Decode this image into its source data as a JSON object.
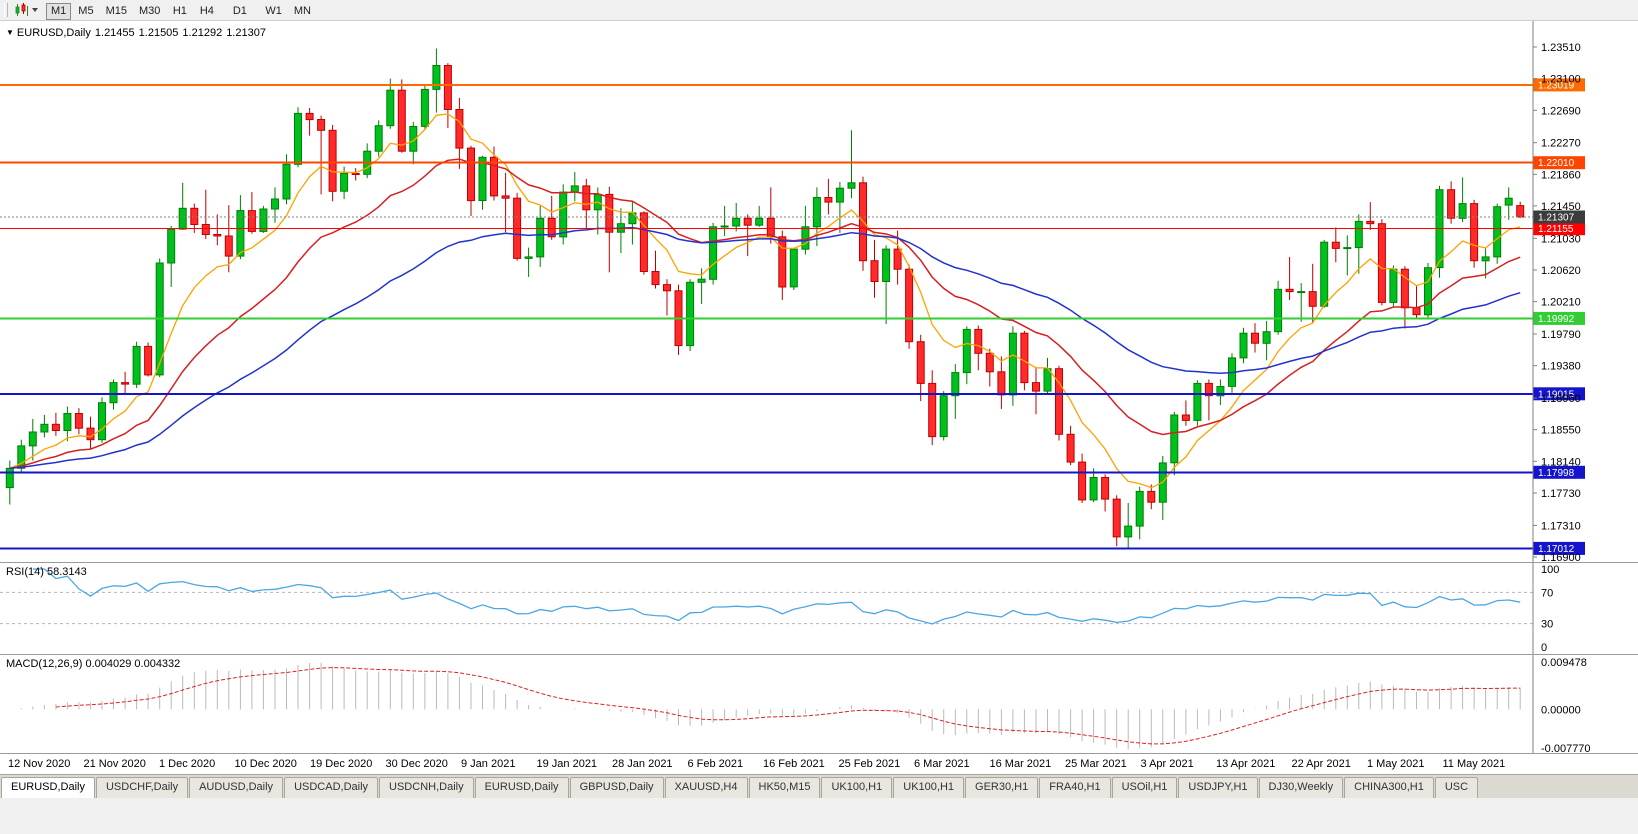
{
  "toolbar": {
    "timeframes": [
      "M1",
      "M5",
      "M15",
      "M30",
      "H1",
      "H4",
      "D1",
      "W1",
      "MN"
    ],
    "active": "M1",
    "group_breaks": [
      "H4",
      "D1"
    ]
  },
  "chart_header": {
    "menu_icon": "▼",
    "symbol": "EURUSD,Daily",
    "open": "1.21455",
    "high": "1.21505",
    "low": "1.21292",
    "close": "1.21307"
  },
  "chart_data": {
    "type": "candlestick",
    "title": "EURUSD,Daily",
    "ylim": [
      1.169,
      1.2351
    ],
    "y_ticks": [
      "1.23510",
      "1.23100",
      "1.22690",
      "1.22270",
      "1.21860",
      "1.21450",
      "1.21030",
      "1.20620",
      "1.20210",
      "1.19790",
      "1.19380",
      "1.18960",
      "1.18550",
      "1.18140",
      "1.17730",
      "1.17310",
      "1.16900"
    ],
    "x_labels": [
      "12 Nov 2020",
      "21 Nov 2020",
      "1 Dec 2020",
      "10 Dec 2020",
      "19 Dec 2020",
      "30 Dec 2020",
      "9 Jan 2021",
      "19 Jan 2021",
      "28 Jan 2021",
      "6 Feb 2021",
      "16 Feb 2021",
      "25 Feb 2021",
      "6 Mar 2021",
      "16 Mar 2021",
      "25 Mar 2021",
      "3 Apr 2021",
      "13 Apr 2021",
      "22 Apr 2021",
      "1 May 2021",
      "11 May 2021"
    ],
    "colors": {
      "up": "#00c020",
      "up_border": "#008000",
      "down": "#ff2a2a",
      "down_border": "#c00000"
    },
    "moving_averages": [
      {
        "name": "ma-fast",
        "method": "ema",
        "period": 8,
        "color": "#ffa200",
        "width": 1.3
      },
      {
        "name": "ma-mid",
        "method": "ema",
        "period": 20,
        "color": "#d62020",
        "width": 1.5
      },
      {
        "name": "ma-slow",
        "method": "ema",
        "period": 45,
        "color": "#2233cc",
        "width": 1.5
      }
    ],
    "hlines": [
      {
        "price": 1.23019,
        "label": "1.23019",
        "color": "#ff6a00",
        "width": 2
      },
      {
        "price": 1.2201,
        "label": "1.22010",
        "color": "#ff4400",
        "width": 2
      },
      {
        "price": 1.21155,
        "label": "1.21155",
        "color": "#ff0000",
        "width": 1
      },
      {
        "price": 1.19992,
        "label": "1.19992",
        "color": "#32cd32",
        "width": 2
      },
      {
        "price": 1.19015,
        "label": "1.19015",
        "color": "#1414cc",
        "width": 2
      },
      {
        "price": 1.17998,
        "label": "1.17998",
        "color": "#1414cc",
        "width": 2
      },
      {
        "price": 1.17012,
        "label": "1.17012",
        "color": "#1414cc",
        "width": 2
      }
    ],
    "current_price": {
      "value": 1.21307,
      "label": "1.21307",
      "line_color": "#808080",
      "tag_color": "#3c3c3c"
    },
    "candles": [
      [
        1.178,
        1.1815,
        1.1758,
        1.1805
      ],
      [
        1.1805,
        1.1842,
        1.1799,
        1.1834
      ],
      [
        1.1834,
        1.1869,
        1.1815,
        1.1852
      ],
      [
        1.1852,
        1.1874,
        1.1845,
        1.1862
      ],
      [
        1.1862,
        1.1877,
        1.1847,
        1.1854
      ],
      [
        1.1854,
        1.1885,
        1.184,
        1.1876
      ],
      [
        1.1876,
        1.1883,
        1.1849,
        1.1857
      ],
      [
        1.1857,
        1.1872,
        1.183,
        1.1842
      ],
      [
        1.1842,
        1.1897,
        1.1838,
        1.189
      ],
      [
        1.189,
        1.192,
        1.1881,
        1.1916
      ],
      [
        1.1916,
        1.193,
        1.1902,
        1.1914
      ],
      [
        1.1914,
        1.1969,
        1.1909,
        1.1963
      ],
      [
        1.1963,
        1.1968,
        1.1924,
        1.1926
      ],
      [
        1.1926,
        1.2077,
        1.1923,
        1.2071
      ],
      [
        1.2071,
        1.2119,
        1.204,
        1.2115
      ],
      [
        1.2115,
        1.2175,
        1.2114,
        1.2142
      ],
      [
        1.2142,
        1.2148,
        1.211,
        1.2121
      ],
      [
        1.2121,
        1.2166,
        1.2102,
        1.2108
      ],
      [
        1.2108,
        1.2134,
        1.2094,
        1.2106
      ],
      [
        1.2106,
        1.2146,
        1.2059,
        1.208
      ],
      [
        1.208,
        1.2159,
        1.2076,
        1.2139
      ],
      [
        1.2139,
        1.2163,
        1.2109,
        1.2112
      ],
      [
        1.2112,
        1.2145,
        1.211,
        1.2141
      ],
      [
        1.2141,
        1.2169,
        1.2123,
        1.2154
      ],
      [
        1.2154,
        1.2212,
        1.2147,
        1.2199
      ],
      [
        1.2199,
        1.2273,
        1.2195,
        1.2265
      ],
      [
        1.2265,
        1.2272,
        1.2236,
        1.2257
      ],
      [
        1.2257,
        1.2262,
        1.216,
        1.2243
      ],
      [
        1.2243,
        1.225,
        1.2151,
        1.2164
      ],
      [
        1.2164,
        1.2196,
        1.2154,
        1.2187
      ],
      [
        1.2187,
        1.2194,
        1.2178,
        1.2186
      ],
      [
        1.2186,
        1.2226,
        1.2181,
        1.2216
      ],
      [
        1.2216,
        1.2256,
        1.2209,
        1.2249
      ],
      [
        1.2249,
        1.231,
        1.2245,
        1.2295
      ],
      [
        1.2295,
        1.2309,
        1.2214,
        1.2216
      ],
      [
        1.2216,
        1.2254,
        1.2199,
        1.2248
      ],
      [
        1.2248,
        1.2303,
        1.2245,
        1.2296
      ],
      [
        1.2296,
        1.2349,
        1.2266,
        1.2327
      ],
      [
        1.2327,
        1.233,
        1.2246,
        1.227
      ],
      [
        1.227,
        1.2285,
        1.2193,
        1.222
      ],
      [
        1.222,
        1.2223,
        1.2132,
        1.2152
      ],
      [
        1.2152,
        1.221,
        1.214,
        1.2208
      ],
      [
        1.2208,
        1.2222,
        1.2152,
        1.2158
      ],
      [
        1.2158,
        1.2188,
        1.2111,
        1.2155
      ],
      [
        1.2155,
        1.2162,
        1.2074,
        1.2077
      ],
      [
        1.2077,
        1.2091,
        1.2053,
        1.2079
      ],
      [
        1.2079,
        1.2145,
        1.2066,
        1.2129
      ],
      [
        1.2129,
        1.2158,
        1.2101,
        1.2105
      ],
      [
        1.2105,
        1.2173,
        1.2095,
        1.2163
      ],
      [
        1.2163,
        1.2189,
        1.2151,
        1.2171
      ],
      [
        1.2171,
        1.218,
        1.2116,
        1.214
      ],
      [
        1.214,
        1.2169,
        1.2108,
        1.216
      ],
      [
        1.216,
        1.217,
        1.2059,
        1.2111
      ],
      [
        1.2111,
        1.2142,
        1.2084,
        1.2122
      ],
      [
        1.2122,
        1.2151,
        1.2095,
        1.2136
      ],
      [
        1.2136,
        1.2138,
        1.2056,
        1.206
      ],
      [
        1.206,
        1.2087,
        1.2038,
        1.2043
      ],
      [
        1.2043,
        1.205,
        1.2003,
        1.2035
      ],
      [
        1.2035,
        1.2043,
        1.1952,
        1.1964
      ],
      [
        1.1964,
        1.205,
        1.1957,
        1.2046
      ],
      [
        1.2046,
        1.2064,
        1.2018,
        1.205
      ],
      [
        1.205,
        1.2123,
        1.2043,
        1.2118
      ],
      [
        1.2118,
        1.2145,
        1.2106,
        1.2119
      ],
      [
        1.2119,
        1.2149,
        1.2112,
        1.2129
      ],
      [
        1.2129,
        1.2134,
        1.208,
        1.212
      ],
      [
        1.212,
        1.2145,
        1.2118,
        1.2129
      ],
      [
        1.2129,
        1.2169,
        1.2096,
        1.2105
      ],
      [
        1.2105,
        1.2113,
        1.2023,
        1.204
      ],
      [
        1.204,
        1.209,
        1.2036,
        1.2089
      ],
      [
        1.2089,
        1.2145,
        1.2082,
        1.2118
      ],
      [
        1.2118,
        1.2169,
        1.2093,
        1.2156
      ],
      [
        1.2156,
        1.218,
        1.2134,
        1.215
      ],
      [
        1.215,
        1.2176,
        1.211,
        1.2168
      ],
      [
        1.2168,
        1.2243,
        1.2155,
        1.2175
      ],
      [
        1.2175,
        1.2183,
        1.2061,
        1.2074
      ],
      [
        1.2074,
        1.2101,
        1.2026,
        1.2047
      ],
      [
        1.2047,
        1.2094,
        1.1992,
        1.2089
      ],
      [
        1.2089,
        1.2113,
        1.2043,
        1.2063
      ],
      [
        1.2063,
        1.2069,
        1.196,
        1.1969
      ],
      [
        1.1969,
        1.1978,
        1.1892,
        1.1915
      ],
      [
        1.1915,
        1.1932,
        1.1835,
        1.1846
      ],
      [
        1.1846,
        1.1905,
        1.1841,
        1.1899
      ],
      [
        1.1899,
        1.194,
        1.1869,
        1.1929
      ],
      [
        1.1929,
        1.1989,
        1.1914,
        1.1985
      ],
      [
        1.1985,
        1.199,
        1.1932,
        1.1954
      ],
      [
        1.1954,
        1.196,
        1.1911,
        1.193
      ],
      [
        1.193,
        1.195,
        1.1882,
        1.19
      ],
      [
        1.19,
        1.1989,
        1.1886,
        1.198
      ],
      [
        1.198,
        1.1983,
        1.1906,
        1.1916
      ],
      [
        1.1916,
        1.1936,
        1.1875,
        1.1905
      ],
      [
        1.1905,
        1.1948,
        1.1901,
        1.1934
      ],
      [
        1.1934,
        1.1938,
        1.1841,
        1.1849
      ],
      [
        1.1849,
        1.186,
        1.1809,
        1.1813
      ],
      [
        1.1813,
        1.1824,
        1.176,
        1.1764
      ],
      [
        1.1764,
        1.1805,
        1.1761,
        1.1793
      ],
      [
        1.1793,
        1.1797,
        1.1749,
        1.1765
      ],
      [
        1.1765,
        1.177,
        1.1704,
        1.1716
      ],
      [
        1.1716,
        1.176,
        1.17,
        1.173
      ],
      [
        1.173,
        1.1781,
        1.1713,
        1.1775
      ],
      [
        1.1775,
        1.1784,
        1.1752,
        1.1761
      ],
      [
        1.1761,
        1.1821,
        1.1738,
        1.1812
      ],
      [
        1.1812,
        1.1878,
        1.1796,
        1.1874
      ],
      [
        1.1874,
        1.1893,
        1.186,
        1.1867
      ],
      [
        1.1867,
        1.1919,
        1.186,
        1.1915
      ],
      [
        1.1915,
        1.192,
        1.1867,
        1.1899
      ],
      [
        1.1899,
        1.192,
        1.1887,
        1.1911
      ],
      [
        1.1911,
        1.1954,
        1.1903,
        1.1948
      ],
      [
        1.1948,
        1.1987,
        1.1941,
        1.198
      ],
      [
        1.198,
        1.1993,
        1.1955,
        1.1967
      ],
      [
        1.1967,
        1.1996,
        1.1945,
        1.1982
      ],
      [
        1.1982,
        1.2048,
        1.1978,
        1.2037
      ],
      [
        1.2037,
        1.2079,
        1.2023,
        1.2034
      ],
      [
        1.2034,
        1.2045,
        1.1995,
        1.2034
      ],
      [
        1.2034,
        1.207,
        1.1993,
        1.2015
      ],
      [
        1.2015,
        1.2101,
        1.2013,
        1.2098
      ],
      [
        1.2098,
        1.2117,
        1.2072,
        1.209
      ],
      [
        1.209,
        1.2107,
        1.2055,
        1.2091
      ],
      [
        1.2091,
        1.2134,
        1.2057,
        1.2125
      ],
      [
        1.2125,
        1.215,
        1.2114,
        1.2122
      ],
      [
        1.2122,
        1.2128,
        1.2016,
        1.202
      ],
      [
        1.202,
        1.2068,
        1.2014,
        1.2063
      ],
      [
        1.2063,
        1.2067,
        1.1986,
        1.2013
      ],
      [
        1.2013,
        1.2042,
        1.1999,
        1.2004
      ],
      [
        1.2004,
        1.2071,
        1.2,
        1.2065
      ],
      [
        1.2065,
        1.2171,
        1.2052,
        1.2166
      ],
      [
        1.2166,
        1.2177,
        1.2122,
        1.2129
      ],
      [
        1.2129,
        1.2182,
        1.2124,
        1.2148
      ],
      [
        1.2148,
        1.2153,
        1.2065,
        1.2074
      ],
      [
        1.2074,
        1.209,
        1.2051,
        1.2079
      ],
      [
        1.2079,
        1.2148,
        1.207,
        1.2144
      ],
      [
        1.2146,
        1.2169,
        1.2127,
        1.2155
      ],
      [
        1.21455,
        1.21505,
        1.21292,
        1.21307
      ]
    ],
    "indicators": [
      {
        "name": "RSI",
        "label": "RSI(14) 58.3143",
        "period": 14,
        "value": "58.3143",
        "levels": [
          70,
          30
        ],
        "scale": [
          "100",
          "70",
          "30",
          "0"
        ],
        "range": [
          0,
          100
        ],
        "color": "#4ba6e3"
      },
      {
        "name": "MACD",
        "label": "MACD(12,26,9) 0.004029 0.004332",
        "fast": 12,
        "slow": 26,
        "signal": 9,
        "values": [
          "0.004029",
          "0.004332"
        ],
        "range": [
          -0.00777,
          0.009478
        ],
        "scale": [
          "0.009478",
          "0.00000",
          "-0.007770"
        ],
        "histogram_color": "#b9b9b9",
        "signal_color": "#e02020"
      }
    ]
  },
  "tabs": {
    "items": [
      {
        "label": "EURUSD,Daily",
        "active": true
      },
      {
        "label": "USDCHF,Daily",
        "active": false
      },
      {
        "label": "AUDUSD,Daily",
        "active": false
      },
      {
        "label": "USDCAD,Daily",
        "active": false
      },
      {
        "label": "USDCNH,Daily",
        "active": false
      },
      {
        "label": "EURUSD,Daily",
        "active": false
      },
      {
        "label": "GBPUSD,Daily",
        "active": false
      },
      {
        "label": "XAUUSD,H4",
        "active": false
      },
      {
        "label": "HK50,M15",
        "active": false
      },
      {
        "label": "UK100,H1",
        "active": false
      },
      {
        "label": "UK100,H1",
        "active": false
      },
      {
        "label": "GER30,H1",
        "active": false
      },
      {
        "label": "FRA40,H1",
        "active": false
      },
      {
        "label": "USOil,H1",
        "active": false
      },
      {
        "label": "USDJPY,H1",
        "active": false
      },
      {
        "label": "DJ30,Weekly",
        "active": false
      },
      {
        "label": "CHINA300,H1",
        "active": false
      },
      {
        "label": "USC",
        "active": false
      }
    ]
  }
}
